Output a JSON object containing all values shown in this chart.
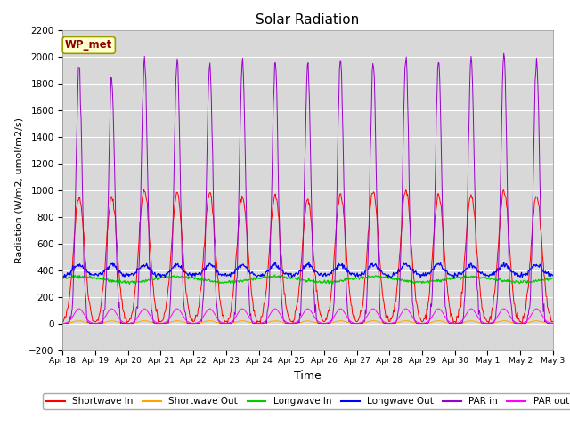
{
  "title": "Solar Radiation",
  "ylabel": "Radiation (W/m2, umol/m2/s)",
  "xlabel": "Time",
  "ylim": [
    -200,
    2200
  ],
  "yticks": [
    -200,
    0,
    200,
    400,
    600,
    800,
    1000,
    1200,
    1400,
    1600,
    1800,
    2000,
    2200
  ],
  "xtick_labels": [
    "Apr 18",
    "Apr 19",
    "Apr 20",
    "Apr 21",
    "Apr 22",
    "Apr 23",
    "Apr 24",
    "Apr 25",
    "Apr 26",
    "Apr 27",
    "Apr 28",
    "Apr 29",
    "Apr 30",
    "May 1",
    "May 2",
    "May 3"
  ],
  "annotation": "WP_met",
  "colors": {
    "shortwave_in": "#ff0000",
    "shortwave_out": "#ffa500",
    "longwave_in": "#00cc00",
    "longwave_out": "#0000ff",
    "par_in": "#9900cc",
    "par_out": "#ff00ff"
  },
  "legend_labels": [
    "Shortwave In",
    "Shortwave Out",
    "Longwave In",
    "Longwave Out",
    "PAR in",
    "PAR out"
  ],
  "bg_color": "#d8d8d8",
  "title_fontsize": 11,
  "n_days": 15,
  "shortwave_peak": 950,
  "par_in_peak": 1980,
  "par_out_peak": 110,
  "longwave_in_base": 330,
  "longwave_out_base": 360
}
